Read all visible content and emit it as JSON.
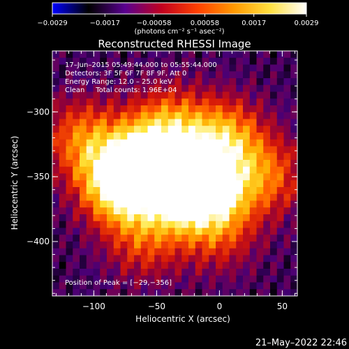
{
  "chart_data": {
    "type": "heatmap",
    "title": "Reconstructed RHESSI Image",
    "xlabel": "Heliocentric X (arcsec)",
    "ylabel": "Heliocentric Y (arcsec)",
    "xlim": [
      -133,
      62
    ],
    "ylim": [
      -442,
      -253
    ],
    "x_ticks": [
      -100,
      -50,
      0,
      50
    ],
    "x_tick_labels": [
      "−100",
      "−50",
      "0",
      "50"
    ],
    "y_ticks": [
      -300,
      -350,
      -400
    ],
    "y_tick_labels": [
      "−300",
      "−350",
      "−400"
    ],
    "colorbar": {
      "range": [
        -0.0029,
        0.0029
      ],
      "ticks": [
        -0.0029,
        -0.0017,
        -0.00058,
        0.00058,
        0.0017,
        0.0029
      ],
      "tick_labels": [
        "−0.0029",
        "−0.0017",
        "−0.00058",
        "0.00058",
        "0.0017",
        "0.0029"
      ],
      "units_label": "(photons cm⁻² s⁻¹ asec⁻²)",
      "colors": [
        "#0000ff",
        "#000000",
        "#5a0090",
        "#c00020",
        "#ff4000",
        "#ff9900",
        "#ffe040",
        "#ffffff"
      ]
    },
    "annotations": {
      "time": "17–Jun–2015 05:49:44.000 to 05:55:44.000",
      "detectors": "Detectors: 3F 5F 6F 7F 8F 9F, Att 0",
      "energy": "Energy Range: 12.0 – 25.0 keV",
      "clean": "Clean     Total counts: 1.96E+04",
      "peak": "Position of Peak = [−29,−356]"
    },
    "peak_position": [
      -29,
      -356
    ],
    "sources": [
      {
        "x": -80,
        "y": -355,
        "intensity": 0.85
      },
      {
        "x": -29,
        "y": -356,
        "intensity": 1.0
      },
      {
        "x": -60,
        "y": -338,
        "intensity": 0.6
      },
      {
        "x": 5,
        "y": -320,
        "intensity": 0.55
      },
      {
        "x": -5,
        "y": -360,
        "intensity": 0.55
      },
      {
        "x": -110,
        "y": -320,
        "intensity": 0.45
      },
      {
        "x": -40,
        "y": -310,
        "intensity": 0.45
      },
      {
        "x": 40,
        "y": -350,
        "intensity": 0.4
      },
      {
        "x": -60,
        "y": -400,
        "intensity": 0.35
      },
      {
        "x": 0,
        "y": -395,
        "intensity": 0.3
      }
    ]
  },
  "footer": {
    "date": "21–May–2022 22:46"
  }
}
